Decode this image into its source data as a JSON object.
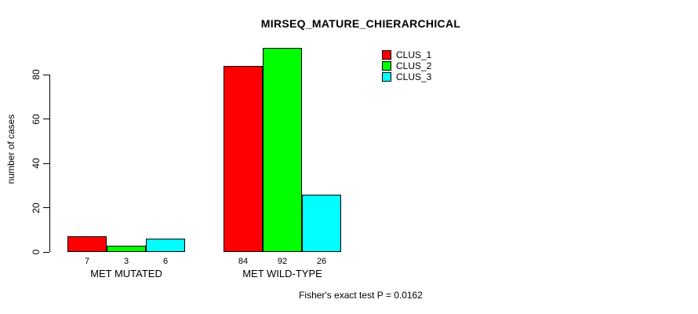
{
  "title": "MIRSEQ_MATURE_CHIERARCHICAL",
  "footer": "Fisher's exact test P = 0.0162",
  "colors": {
    "background": "#ffffff",
    "axis": "#000000",
    "bar_border": "#000000",
    "clus_1": "#ff0000",
    "clus_2": "#00ff00",
    "clus_3": "#00ffff"
  },
  "chart_data": {
    "type": "bar",
    "title": "MIRSEQ_MATURE_CHIERARCHICAL",
    "xlabel": "",
    "ylabel": "number of cases",
    "ylim": [
      0,
      92
    ],
    "yticks": [
      0,
      20,
      40,
      60,
      80
    ],
    "grid": false,
    "legend_position": "top-right",
    "categories": [
      "MET MUTATED",
      "MET WILD-TYPE"
    ],
    "series": [
      {
        "name": "CLUS_1",
        "color": "#ff0000",
        "values": [
          7,
          84
        ]
      },
      {
        "name": "CLUS_2",
        "color": "#00ff00",
        "values": [
          3,
          92
        ]
      },
      {
        "name": "CLUS_3",
        "color": "#00ffff",
        "values": [
          6,
          26
        ]
      }
    ],
    "bar_value_labels": [
      [
        "7",
        "3",
        "6"
      ],
      [
        "84",
        "92",
        "26"
      ]
    ],
    "annotation": "Fisher's exact test P = 0.0162"
  }
}
